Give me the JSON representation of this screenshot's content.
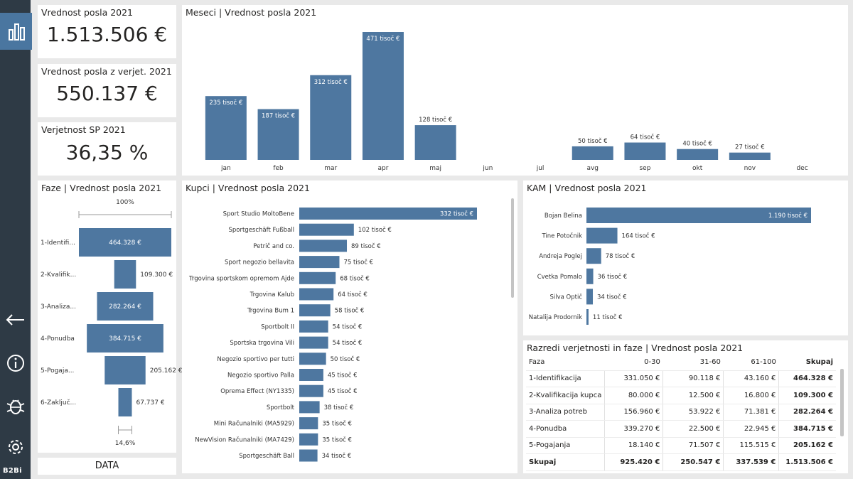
{
  "sidebar": {
    "icons": [
      "bar-chart-icon",
      "arrow-left-icon",
      "info-icon",
      "bug-icon",
      "gear-icon"
    ],
    "logo": "B2Bi",
    "accent": "#4a76a0"
  },
  "kpis": [
    {
      "title": "Vrednost posla 2021",
      "value": "1.513.506 €"
    },
    {
      "title": "Vrednost posla z verjet. 2021",
      "value": "550.137 €"
    },
    {
      "title": "Verjetnost SP 2021",
      "value": "36,35 %"
    }
  ],
  "data_button": "DATA",
  "months_chart": {
    "title": "Meseci | Vrednost posla 2021",
    "chart_data": {
      "type": "bar",
      "categories": [
        "jan",
        "feb",
        "mar",
        "apr",
        "maj",
        "jun",
        "jul",
        "avg",
        "sep",
        "okt",
        "nov",
        "dec"
      ],
      "values": [
        235,
        187,
        312,
        471,
        128,
        null,
        null,
        50,
        64,
        40,
        27,
        null
      ],
      "labels": [
        "235 tisoč €",
        "187 tisoč €",
        "312 tisoč €",
        "471 tisoč €",
        "128 tisoč €",
        "",
        "",
        "50 tisoč €",
        "64 tisoč €",
        "40 tisoč €",
        "27 tisoč €",
        ""
      ],
      "unit": "tisoč €"
    }
  },
  "funnel": {
    "title": "Faze | Vrednost posla 2021",
    "top_label": "100%",
    "bottom_label": "14,6%",
    "stages": [
      {
        "name": "1-Identifi...",
        "value": 464328,
        "label": "464.328 €"
      },
      {
        "name": "2-Kvalifik...",
        "value": 109300,
        "label": "109.300 €"
      },
      {
        "name": "3-Analiza...",
        "value": 282264,
        "label": "282.264 €"
      },
      {
        "name": "4-Ponudba",
        "value": 384715,
        "label": "384.715 €"
      },
      {
        "name": "5-Pogaja...",
        "value": 205162,
        "label": "205.162 €"
      },
      {
        "name": "6-Zaključ...",
        "value": 67737,
        "label": "67.737 €"
      }
    ]
  },
  "buyers_chart": {
    "title": "Kupci | Vrednost posla 2021",
    "chart_data": {
      "type": "bar",
      "orientation": "horizontal",
      "categories": [
        "Sport Studio MoltoBene",
        "Sportgeschäft Fußball",
        "Petrič and co.",
        "Sport negozio bellavita",
        "Trgovina sportskom opremom Ajde",
        "Trgovina Kalub",
        "Trgovina Bum 1",
        "Sportbolt II",
        "Sportska trgovina Vili",
        "Negozio sportivo per tutti",
        "Negozio sportivo Palla",
        "Oprema Effect (NY1335)",
        "Sportbolt",
        "Mini Računalniki (MA5929)",
        "NewVision Računalniki (MA7429)",
        "Sportgeschäft Ball"
      ],
      "values": [
        332,
        102,
        89,
        75,
        68,
        64,
        58,
        54,
        54,
        50,
        45,
        45,
        38,
        35,
        35,
        34
      ],
      "labels": [
        "332 tisoč €",
        "102 tisoč €",
        "89 tisoč €",
        "75 tisoč €",
        "68 tisoč €",
        "64 tisoč €",
        "58 tisoč €",
        "54 tisoč €",
        "54 tisoč €",
        "50 tisoč €",
        "45 tisoč €",
        "45 tisoč €",
        "38 tisoč €",
        "35 tisoč €",
        "35 tisoč €",
        "34 tisoč €"
      ],
      "unit": "tisoč €"
    }
  },
  "kam_chart": {
    "title": "KAM | Vrednost posla 2021",
    "chart_data": {
      "type": "bar",
      "orientation": "horizontal",
      "categories": [
        "Bojan Belina",
        "Tine Potočnik",
        "Andreja Poglej",
        "Cvetka Pomalo",
        "Silva Optič",
        "Natalija Prodornik"
      ],
      "values": [
        1190,
        164,
        78,
        36,
        34,
        11
      ],
      "labels": [
        "1.190 tisoč €",
        "164 tisoč €",
        "78 tisoč €",
        "36 tisoč €",
        "34 tisoč €",
        "11 tisoč €"
      ],
      "unit": "tisoč €"
    }
  },
  "matrix": {
    "title": "Razredi verjetnosti in faze | Vrednost posla 2021",
    "headers": [
      "Faza",
      "0-30",
      "31-60",
      "61-100",
      "Skupaj"
    ],
    "rows": [
      [
        "1-Identifikacija",
        "331.050 €",
        "90.118 €",
        "43.160 €",
        "464.328 €"
      ],
      [
        "2-Kvalifikacija kupca",
        "80.000 €",
        "12.500 €",
        "16.800 €",
        "109.300 €"
      ],
      [
        "3-Analiza potreb",
        "156.960 €",
        "53.922 €",
        "71.381 €",
        "282.264 €"
      ],
      [
        "4-Ponudba",
        "339.270 €",
        "22.500 €",
        "22.945 €",
        "384.715 €"
      ],
      [
        "5-Pogajanja",
        "18.140 €",
        "71.507 €",
        "115.515 €",
        "205.162 €"
      ]
    ],
    "total": [
      "Skupaj",
      "925.420 €",
      "250.547 €",
      "337.539 €",
      "1.513.506 €"
    ]
  }
}
